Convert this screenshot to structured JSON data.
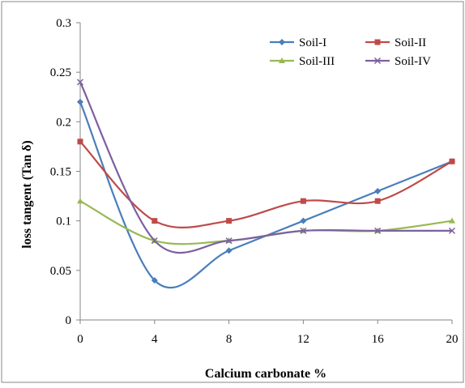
{
  "chart_data": {
    "type": "line",
    "title": "",
    "xlabel": "Calcium carbonate  %",
    "ylabel": "loss tangent (Tan δ)",
    "x": [
      0,
      4,
      8,
      12,
      16,
      20
    ],
    "xlim": [
      0,
      20
    ],
    "ylim": [
      0,
      0.3
    ],
    "xticks": [
      "0",
      "4",
      "8",
      "12",
      "16",
      "20"
    ],
    "yticks": [
      "0",
      "0.05",
      "0.1",
      "0.15",
      "0.2",
      "0.25",
      "0.3"
    ],
    "grid": false,
    "legend_position": "top-right",
    "smooth": true,
    "series": [
      {
        "name": "Soil-I",
        "color": "#4a7ebb",
        "marker": "diamond",
        "values": [
          0.22,
          0.04,
          0.07,
          0.1,
          0.13,
          0.16
        ]
      },
      {
        "name": "Soil-II",
        "color": "#be4b48",
        "marker": "square",
        "values": [
          0.18,
          0.1,
          0.1,
          0.12,
          0.12,
          0.16
        ]
      },
      {
        "name": "Soil-III",
        "color": "#98b954",
        "marker": "triangle",
        "values": [
          0.12,
          0.08,
          0.08,
          0.09,
          0.09,
          0.1
        ]
      },
      {
        "name": "Soil-IV",
        "color": "#7d60a0",
        "marker": "x",
        "values": [
          0.24,
          0.08,
          0.08,
          0.09,
          0.09,
          0.09
        ]
      }
    ]
  }
}
